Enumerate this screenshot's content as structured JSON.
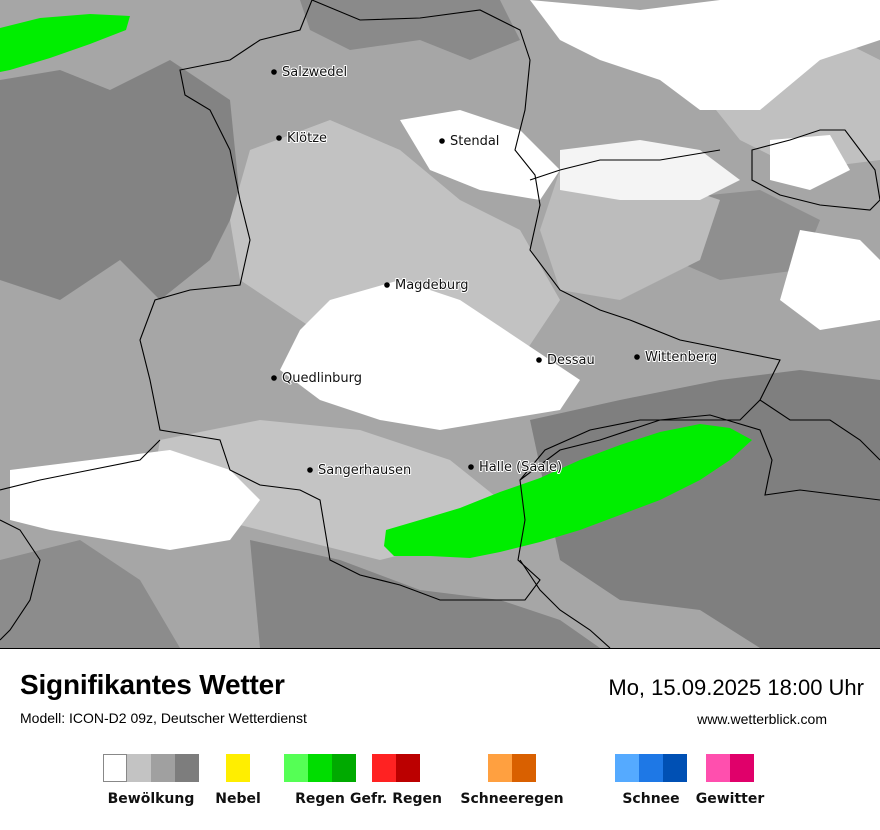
{
  "map": {
    "cities": [
      {
        "name": "Salzwedel"
      },
      {
        "name": "Klötze"
      },
      {
        "name": "Stendal"
      },
      {
        "name": "Magdeburg"
      },
      {
        "name": "Dessau"
      },
      {
        "name": "Wittenberg"
      },
      {
        "name": "Quedlinburg"
      },
      {
        "name": "Sangerhausen"
      },
      {
        "name": "Halle (Saale)"
      }
    ],
    "colors": {
      "cloud_dark": "#7d7d7d",
      "cloud_mid": "#9f9f9f",
      "cloud_light": "#bfbfbf",
      "clear": "#ffffff",
      "rain": "#00ee00",
      "border": "#000000"
    }
  },
  "header": {
    "title": "Signifikantes Wetter",
    "subtitle": "Modell: ICON-D2 09z, Deutscher Wetterdienst",
    "datetime": "Mo, 15.09.2025 18:00 Uhr",
    "website": "www.wetterblick.com"
  },
  "legend": [
    {
      "label": "Bewölkung",
      "colors": [
        "#ffffff",
        "#c3c3c3",
        "#a0a0a0",
        "#7d7d7d"
      ]
    },
    {
      "label": "Nebel",
      "colors": [
        "#ffee00"
      ]
    },
    {
      "label": "Regen",
      "colors": [
        "#55ff55",
        "#00dd00",
        "#00aa00"
      ]
    },
    {
      "label": "Gefr. Regen",
      "colors": [
        "#ff2222",
        "#bb0000"
      ]
    },
    {
      "label": "Schneeregen",
      "colors": [
        "#ffa040",
        "#d96000"
      ]
    },
    {
      "label": "Schnee",
      "colors": [
        "#55aaff",
        "#1e78e6",
        "#0050b4"
      ]
    },
    {
      "label": "Gewitter",
      "colors": [
        "#ff4fae",
        "#e0006a"
      ]
    }
  ]
}
